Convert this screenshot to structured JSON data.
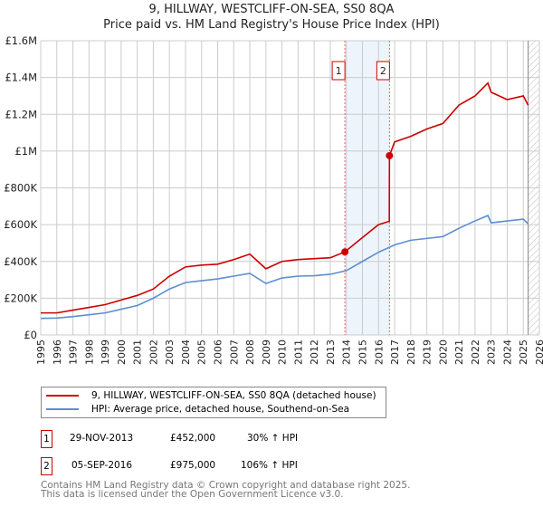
{
  "title": "9, HILLWAY, WESTCLIFF-ON-SEA, SS0 8QA",
  "subtitle": "Price paid vs. HM Land Registry's House Price Index (HPI)",
  "colors": {
    "property": "#cc0000",
    "hpi": "#5b8fd0",
    "shade": "#eef4fc"
  },
  "chart_data": {
    "type": "line",
    "xlim": [
      1995,
      2026
    ],
    "ylim": [
      0,
      1600000
    ],
    "x_ticks": [
      "1995",
      "1996",
      "1997",
      "1998",
      "1999",
      "2000",
      "2001",
      "2002",
      "2003",
      "2004",
      "2005",
      "2006",
      "2007",
      "2008",
      "2009",
      "2010",
      "2011",
      "2012",
      "2013",
      "2014",
      "2015",
      "2016",
      "2017",
      "2018",
      "2019",
      "2020",
      "2021",
      "2022",
      "2023",
      "2024",
      "2025",
      "2026"
    ],
    "y_ticks": [
      {
        "v": 0,
        "label": "£0"
      },
      {
        "v": 200000,
        "label": "£200K"
      },
      {
        "v": 400000,
        "label": "£400K"
      },
      {
        "v": 600000,
        "label": "£600K"
      },
      {
        "v": 800000,
        "label": "£800K"
      },
      {
        "v": 1000000,
        "label": "£1M"
      },
      {
        "v": 1200000,
        "label": "£1.2M"
      },
      {
        "v": 1400000,
        "label": "£1.4M"
      },
      {
        "v": 1600000,
        "label": "£1.6M"
      }
    ],
    "series": [
      {
        "name": "9, HILLWAY, WESTCLIFF-ON-SEA, SS0 8QA (detached house)",
        "x": [
          1995,
          1996,
          1997,
          1998,
          1999,
          2000,
          2001,
          2002,
          2003,
          2004,
          2005,
          2006,
          2007,
          2008,
          2009,
          2010,
          2011,
          2012,
          2013,
          2013.91,
          2015,
          2016,
          2016.67,
          2016.68,
          2017,
          2018,
          2019,
          2020,
          2021,
          2022,
          2022.8,
          2023,
          2024,
          2025,
          2025.3
        ],
        "values": [
          120000,
          120000,
          135000,
          150000,
          165000,
          190000,
          215000,
          250000,
          320000,
          370000,
          380000,
          385000,
          410000,
          440000,
          360000,
          400000,
          410000,
          415000,
          420000,
          452000,
          530000,
          600000,
          618000,
          975000,
          1050000,
          1080000,
          1120000,
          1150000,
          1250000,
          1300000,
          1370000,
          1320000,
          1280000,
          1300000,
          1250000
        ]
      },
      {
        "name": "HPI: Average price, detached house, Southend-on-Sea",
        "x": [
          1995,
          1996,
          1997,
          1998,
          1999,
          2000,
          2001,
          2002,
          2003,
          2004,
          2005,
          2006,
          2007,
          2008,
          2009,
          2010,
          2011,
          2012,
          2013,
          2014,
          2015,
          2016,
          2017,
          2018,
          2019,
          2020,
          2021,
          2022,
          2022.8,
          2023,
          2024,
          2025,
          2025.3
        ],
        "values": [
          90000,
          92000,
          100000,
          110000,
          120000,
          140000,
          160000,
          200000,
          250000,
          285000,
          295000,
          305000,
          320000,
          335000,
          280000,
          310000,
          320000,
          322000,
          330000,
          350000,
          400000,
          450000,
          490000,
          515000,
          525000,
          535000,
          580000,
          620000,
          650000,
          610000,
          620000,
          630000,
          605000
        ]
      }
    ],
    "sales": [
      {
        "id": "1",
        "x": 2013.91,
        "value": 452000
      },
      {
        "id": "2",
        "x": 2016.68,
        "value": 975000
      }
    ],
    "forecast_from": 2025.3,
    "legend": "below"
  },
  "transactions": [
    {
      "id": "1",
      "date": "29-NOV-2013",
      "price": "£452,000",
      "hpi": "30% ↑ HPI"
    },
    {
      "id": "2",
      "date": "05-SEP-2016",
      "price": "£975,000",
      "hpi": "106% ↑ HPI"
    }
  ],
  "footer": [
    "Contains HM Land Registry data © Crown copyright and database right 2025.",
    "This data is licensed under the Open Government Licence v3.0."
  ]
}
